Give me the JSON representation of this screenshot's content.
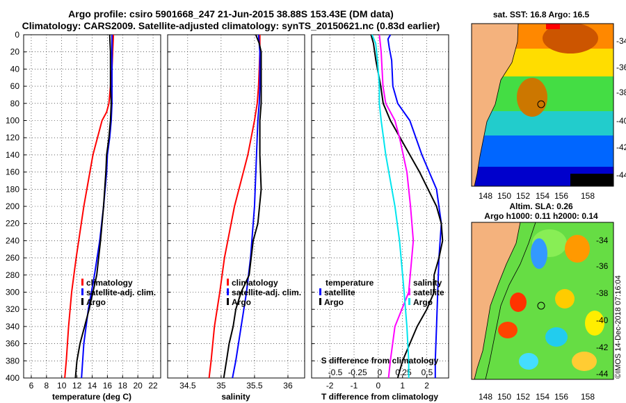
{
  "title_line1": "Argo profile: csiro 5901668_247 21-Jun-2015 38.88S 153.43E (DM data)",
  "title_line2": "Climatology: CARS2009. Satellite-adjusted climatology: synTS_20150621.nc (0.83d earlier)",
  "colors": {
    "climatology": "#ff0000",
    "satellite": "#0000ff",
    "argo": "#000000",
    "s_satellite": "#ff00ff",
    "s_argo": "#00e5ee"
  },
  "depth_ticks": [
    0,
    20,
    40,
    60,
    80,
    100,
    120,
    140,
    160,
    180,
    200,
    220,
    240,
    260,
    280,
    300,
    320,
    340,
    360,
    380,
    400
  ],
  "chart_data": [
    {
      "type": "line",
      "name": "temperature",
      "xlabel": "temperature (deg C)",
      "ylabel": "depth (m)",
      "xlim": [
        5,
        23
      ],
      "ylim": [
        400,
        0
      ],
      "xticks": [
        6,
        8,
        10,
        12,
        14,
        16,
        18,
        20,
        22
      ],
      "legend": [
        "climatology",
        "satellite-adj. clim.",
        "Argo"
      ],
      "legend_position": "lower-right",
      "series": [
        {
          "name": "climatology",
          "depth": [
            0,
            20,
            40,
            60,
            80,
            90,
            100,
            140,
            200,
            260,
            300,
            340,
            380,
            400
          ],
          "values": [
            16.8,
            16.7,
            16.6,
            16.4,
            16.2,
            15.9,
            15.3,
            14.1,
            12.9,
            11.9,
            11.3,
            10.9,
            10.6,
            10.4
          ]
        },
        {
          "name": "satellite-adj. clim.",
          "depth": [
            0,
            20,
            40,
            60,
            80,
            100,
            120,
            140,
            160,
            200,
            240,
            280,
            320,
            360,
            400
          ],
          "values": [
            16.6,
            16.6,
            16.6,
            16.6,
            16.6,
            16.5,
            16.3,
            16.0,
            15.9,
            15.5,
            15.0,
            14.3,
            13.5,
            12.9,
            12.6
          ]
        },
        {
          "name": "Argo",
          "depth": [
            0,
            20,
            40,
            60,
            80,
            100,
            120,
            140,
            160,
            200,
            240,
            280,
            320,
            340,
            360,
            380,
            400
          ],
          "values": [
            16.3,
            16.4,
            16.4,
            16.4,
            16.5,
            16.4,
            16.2,
            15.9,
            15.8,
            15.5,
            15.1,
            14.6,
            13.6,
            13.0,
            12.4,
            12.0,
            11.8
          ]
        }
      ]
    },
    {
      "type": "line",
      "name": "salinity",
      "xlabel": "salinity",
      "ylabel": "depth (m)",
      "xlim": [
        34.2,
        36.25
      ],
      "ylim": [
        400,
        0
      ],
      "xticks": [
        34.5,
        35,
        35.5,
        36
      ],
      "legend": [
        "climatology",
        "satellite-adj. clim.",
        "Argo"
      ],
      "legend_position": "lower-right",
      "series": [
        {
          "name": "climatology",
          "depth": [
            0,
            20,
            40,
            60,
            80,
            100,
            140,
            200,
            260,
            300,
            340,
            380,
            400
          ],
          "values": [
            35.58,
            35.58,
            35.57,
            35.56,
            35.54,
            35.5,
            35.4,
            35.2,
            35.05,
            34.98,
            34.9,
            34.85,
            34.82
          ]
        },
        {
          "name": "satellite-adj. clim.",
          "depth": [
            0,
            20,
            40,
            60,
            80,
            100,
            140,
            200,
            260,
            300,
            340,
            380,
            400
          ],
          "values": [
            35.56,
            35.58,
            35.58,
            35.58,
            35.57,
            35.55,
            35.53,
            35.5,
            35.44,
            35.38,
            35.3,
            35.22,
            35.17
          ]
        },
        {
          "name": "Argo",
          "depth": [
            0,
            10,
            20,
            40,
            60,
            80,
            100,
            140,
            180,
            220,
            240,
            260,
            280,
            300,
            320,
            340,
            360,
            380,
            400
          ],
          "values": [
            35.52,
            35.57,
            35.6,
            35.6,
            35.6,
            35.6,
            35.58,
            35.58,
            35.6,
            35.55,
            35.48,
            35.45,
            35.42,
            35.3,
            35.22,
            35.18,
            35.12,
            35.08,
            35.04
          ]
        }
      ]
    },
    {
      "type": "line",
      "name": "difference from climatology",
      "xlabel": "T difference from climatology",
      "x2label": "S difference from climatology",
      "ylabel": "depth (m)",
      "xlim": [
        -2.75,
        2.9
      ],
      "ylim": [
        400,
        0
      ],
      "xticks": [
        -2,
        -1,
        0,
        1,
        2
      ],
      "x2ticks": [
        "-0.5",
        "-0.25",
        "0",
        "0.25",
        "0.5"
      ],
      "legend": [
        "temperature",
        "satellite",
        "Argo",
        "salinity",
        "satellite",
        "Argo"
      ],
      "legend_position": "lower-right",
      "series": [
        {
          "name": "temperature satellite",
          "depth": [
            0,
            5,
            15,
            30,
            60,
            80,
            100,
            140,
            180,
            220,
            260,
            300,
            340,
            380,
            400
          ],
          "values": [
            0.5,
            0.4,
            0.45,
            0.55,
            0.6,
            0.8,
            1.3,
            1.8,
            2.4,
            2.6,
            2.5,
            2.45,
            2.4,
            2.35,
            2.35
          ]
        },
        {
          "name": "temperature Argo",
          "depth": [
            0,
            10,
            30,
            60,
            80,
            100,
            120,
            140,
            160,
            200,
            220,
            240,
            260,
            280,
            300,
            320,
            340,
            360,
            380,
            400
          ],
          "values": [
            -0.3,
            -0.2,
            -0.1,
            0.1,
            0.2,
            0.5,
            0.9,
            1.3,
            1.7,
            2.4,
            2.6,
            2.65,
            2.5,
            2.3,
            2.3,
            2.0,
            1.6,
            1.3,
            1.0,
            0.8
          ]
        },
        {
          "name": "salinity satellite",
          "depth": [
            0,
            20,
            60,
            80,
            100,
            120,
            160,
            200,
            240,
            300,
            340,
            380,
            400
          ],
          "values": [
            -0.02,
            0,
            0.02,
            0.05,
            0.15,
            0.2,
            0.28,
            0.32,
            0.35,
            0.3,
            0.15,
            0.1,
            0.08
          ]
        },
        {
          "name": "salinity Argo",
          "depth": [
            0,
            10,
            30,
            60,
            80,
            100,
            140,
            200,
            240,
            300,
            340,
            380,
            400
          ],
          "values": [
            -0.1,
            -0.06,
            -0.04,
            -0.02,
            -0.02,
            0,
            0.05,
            0.15,
            0.2,
            0.25,
            0.28,
            0.3,
            0.3
          ]
        }
      ]
    }
  ],
  "maps": {
    "sst": {
      "title": "sat. SST: 16.8 Argo: 16.5",
      "lon_ticks": [
        "148",
        "150",
        "152",
        "154",
        "156",
        "158"
      ],
      "lat_ticks": [
        "-34",
        "-36",
        "-38",
        "-40",
        "-42",
        "-44"
      ]
    },
    "sla": {
      "title_line1": "Altim. SLA: 0.26",
      "title_line2": "Argo h1000: 0.11 h2000: 0.14",
      "lon_ticks": [
        "148",
        "150",
        "152",
        "154",
        "156",
        "158"
      ],
      "lat_ticks": [
        "-34",
        "-36",
        "-38",
        "-40",
        "-42",
        "-44"
      ]
    }
  },
  "credit": "©IMOS 14-Dec-2018 07:16:04"
}
